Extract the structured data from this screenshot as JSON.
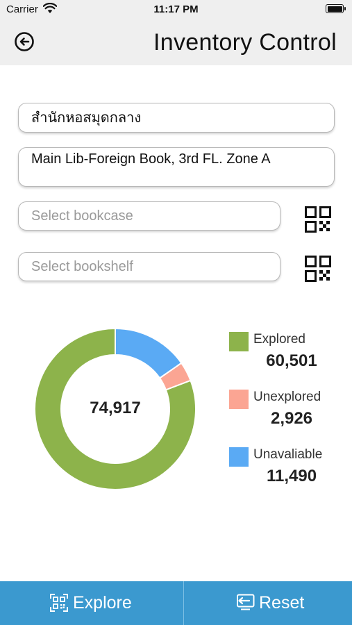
{
  "status_bar": {
    "carrier": "Carrier",
    "time": "11:17 PM"
  },
  "nav": {
    "title": "Inventory Control",
    "back_icon": "back-arrow-circle-icon"
  },
  "form": {
    "library": "สำนักหอสมุดกลาง",
    "location": "Main Lib-Foreign Book, 3rd FL. Zone A",
    "bookcase_placeholder": "Select bookcase",
    "bookshelf_placeholder": "Select bookshelf",
    "scan_icon": "qr-code-icon"
  },
  "chart_data": {
    "type": "pie",
    "style": "donut",
    "total_label": "74,917",
    "slices": [
      {
        "name": "Explored",
        "value": 60501,
        "value_label": "60,501",
        "color": "#8db34b"
      },
      {
        "name": "Unexplored",
        "value": 2926,
        "value_label": "2,926",
        "color": "#fba593"
      },
      {
        "name": "Unavaliable",
        "value": 11490,
        "value_label": "11,490",
        "color": "#5aaaf4"
      }
    ],
    "legend_position": "right"
  },
  "toolbar": {
    "explore_label": "Explore",
    "reset_label": "Reset",
    "bar_color": "#3b99cf"
  }
}
